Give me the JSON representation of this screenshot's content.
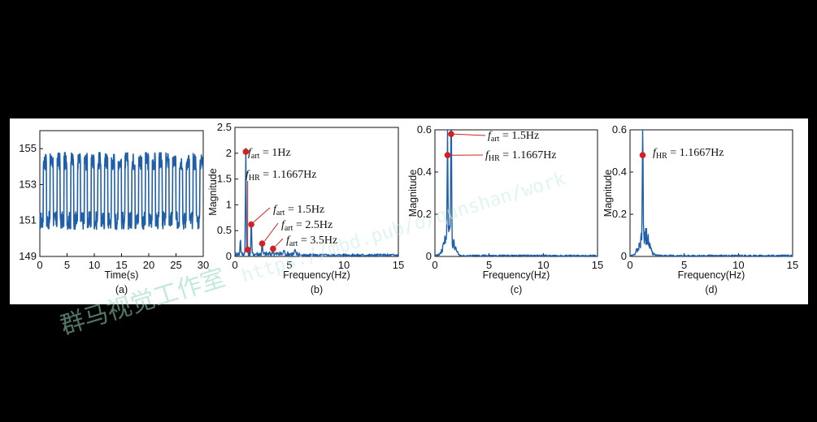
{
  "colors": {
    "line": "#1f5fa8",
    "marker": "#d42020",
    "axis": "#111111"
  },
  "chart_data": [
    {
      "id": "a",
      "type": "line",
      "panel_label": "(a)",
      "xlabel": "Time(s)",
      "ylabel": "",
      "xlim": [
        0,
        30
      ],
      "ylim": [
        149,
        156
      ],
      "xticks": [
        "0",
        "5",
        "10",
        "15",
        "20",
        "25",
        "30"
      ],
      "yticks": [
        "149",
        "151",
        "153",
        "155"
      ],
      "series": [
        {
          "shape": "square-wave",
          "period_s": 1.25,
          "low": 151.0,
          "high": 154.3,
          "noise": 0.5
        }
      ]
    },
    {
      "id": "b",
      "type": "line",
      "panel_label": "(b)",
      "xlabel": "Frequency(Hz)",
      "ylabel": "Magnitude",
      "xlim": [
        0,
        15
      ],
      "ylim": [
        0,
        2.5
      ],
      "xticks": [
        "0",
        "5",
        "10",
        "15"
      ],
      "yticks": [
        "0",
        "0.5",
        "1",
        "1.5",
        "2",
        "2.5"
      ],
      "peaks": [
        {
          "x": 0.5,
          "y": 0.3
        },
        {
          "x": 1.0,
          "y": 2.03
        },
        {
          "x": 1.1667,
          "y": 0.13
        },
        {
          "x": 1.5,
          "y": 0.62
        },
        {
          "x": 2.5,
          "y": 0.25
        },
        {
          "x": 3.5,
          "y": 0.15
        },
        {
          "x": 4.5,
          "y": 0.1
        },
        {
          "x": 5.5,
          "y": 0.08
        }
      ],
      "annotations": [
        {
          "f": "f",
          "sub": "art",
          "rest": " = 1Hz",
          "x": 1.0,
          "y": 2.03
        },
        {
          "f": "f",
          "sub": "HR",
          "rest": " = 1.1667Hz",
          "x": 1.1667,
          "y": 0.13
        },
        {
          "f": "f",
          "sub": "art",
          "rest": " = 1.5Hz",
          "x": 1.5,
          "y": 0.62
        },
        {
          "f": "f",
          "sub": "art",
          "rest": " = 2.5Hz",
          "x": 2.5,
          "y": 0.25
        },
        {
          "f": "f",
          "sub": "art",
          "rest": " = 3.5Hz",
          "x": 3.5,
          "y": 0.15
        }
      ]
    },
    {
      "id": "c",
      "type": "line",
      "panel_label": "(c)",
      "xlabel": "Frequency(Hz)",
      "ylabel": "Magnitude",
      "xlim": [
        0,
        15
      ],
      "ylim": [
        0,
        0.6
      ],
      "xticks": [
        "0",
        "5",
        "10",
        "15"
      ],
      "yticks": [
        "0",
        "0.2",
        "0.4",
        "0.6"
      ],
      "peaks": [
        {
          "x": 1.1667,
          "y": 0.48
        },
        {
          "x": 1.5,
          "y": 0.58
        }
      ],
      "annotations": [
        {
          "f": "f",
          "sub": "art",
          "rest": " = 1.5Hz",
          "x": 1.5,
          "y": 0.58
        },
        {
          "f": "f",
          "sub": "HR",
          "rest": " = 1.1667Hz",
          "x": 1.1667,
          "y": 0.48
        }
      ]
    },
    {
      "id": "d",
      "type": "line",
      "panel_label": "(d)",
      "xlabel": "Frequency(Hz)",
      "ylabel": "Magnitude",
      "xlim": [
        0,
        15
      ],
      "ylim": [
        0,
        0.6
      ],
      "xticks": [
        "0",
        "5",
        "10",
        "15"
      ],
      "yticks": [
        "0",
        "0.2",
        "0.4",
        "0.6"
      ],
      "peaks": [
        {
          "x": 1.1667,
          "y": 0.48
        }
      ],
      "annotations": [
        {
          "f": "f",
          "sub": "HR",
          "rest": " = 1.1667Hz",
          "x": 1.1667,
          "y": 0.48
        }
      ]
    }
  ],
  "watermark": {
    "url": "https://mbd.pub/o/qunshan/work",
    "text": "群马视觉工作室"
  }
}
